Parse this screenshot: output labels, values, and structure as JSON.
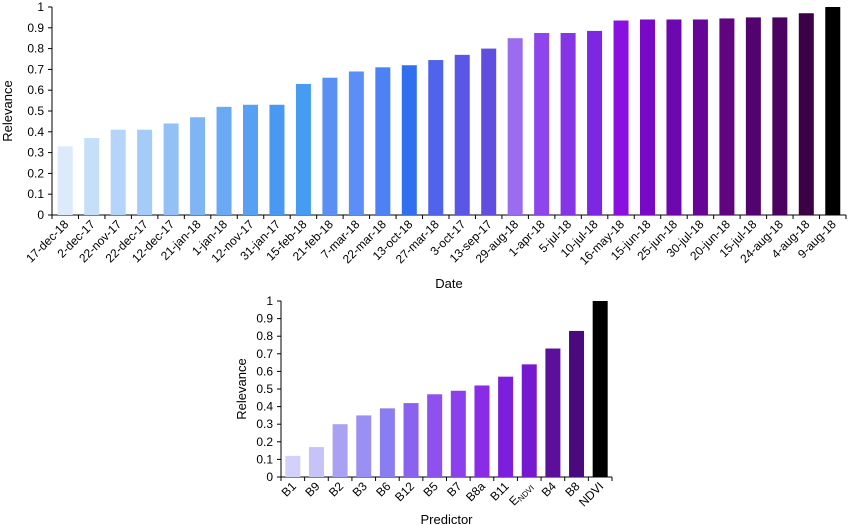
{
  "chart_data": [
    {
      "type": "bar",
      "xlabel": "Date",
      "ylabel": "Relevance",
      "ylim": [
        0,
        1
      ],
      "yticks": [
        "0",
        "0.1",
        "0.2",
        "0.3",
        "0.4",
        "0.5",
        "0.6",
        "0.7",
        "0.8",
        "0.9",
        "1"
      ],
      "grid": false,
      "categories": [
        "17-dec-18",
        "2-dec-17",
        "22-nov-17",
        "22-dec-17",
        "12-dec-17",
        "21-jan-18",
        "1-jan-18",
        "12-nov-17",
        "31-jan-17",
        "15-feb-18",
        "21-feb-18",
        "7-mar-18",
        "22-mar-18",
        "13-oct-18",
        "27-mar-18",
        "3-oct-17",
        "13-sep-17",
        "29-aug-18",
        "1-apr-18",
        "5-jul-18",
        "10-jul-18",
        "16-may-18",
        "15-jun-18",
        "25-jun-18",
        "30-jul-18",
        "20-jun-18",
        "15-jul-18",
        "24-aug-18",
        "4-aug-18",
        "9-aug-18"
      ],
      "values": [
        0.33,
        0.37,
        0.41,
        0.41,
        0.44,
        0.47,
        0.52,
        0.53,
        0.53,
        0.63,
        0.66,
        0.69,
        0.71,
        0.72,
        0.745,
        0.77,
        0.8,
        0.85,
        0.875,
        0.875,
        0.885,
        0.935,
        0.94,
        0.94,
        0.94,
        0.945,
        0.95,
        0.95,
        0.97,
        1.0
      ],
      "colors": [
        "#dceafb",
        "#c5dffa",
        "#b4d5f9",
        "#a5cbf8",
        "#93c1f6",
        "#7fb5f5",
        "#6aaaf4",
        "#58a0f3",
        "#4b98f2",
        "#469bf2",
        "#5a8ff3",
        "#5c8ef7",
        "#4d82f6",
        "#2f6ff0",
        "#4f63ec",
        "#5a56e6",
        "#604de2",
        "#9b6cf0",
        "#8f45ec",
        "#8534e6",
        "#7d26e3",
        "#8a10df",
        "#7909c6",
        "#6d07b0",
        "#670597",
        "#600480",
        "#520370",
        "#4b0260",
        "#3c0145",
        "#000000"
      ]
    },
    {
      "type": "bar",
      "xlabel": "Predictor",
      "ylabel": "Relevance",
      "ylim": [
        0,
        1
      ],
      "yticks": [
        "0",
        "0.1",
        "0.2",
        "0.3",
        "0.4",
        "0.5",
        "0.6",
        "0.7",
        "0.8",
        "0.9",
        "1"
      ],
      "grid": false,
      "categories": [
        "B1",
        "B9",
        "B2",
        "B3",
        "B6",
        "B12",
        "B5",
        "B7",
        "B8a",
        "B11",
        "ENDVI",
        "B4",
        "B8",
        "NDVI"
      ],
      "category_labels": [
        {
          "main": "B1"
        },
        {
          "main": "B9"
        },
        {
          "main": "B2"
        },
        {
          "main": "B3"
        },
        {
          "main": "B6"
        },
        {
          "main": "B12"
        },
        {
          "main": "B5"
        },
        {
          "main": "B7"
        },
        {
          "main": "B8a"
        },
        {
          "main": "B11"
        },
        {
          "main": "E",
          "sub": "NDVI"
        },
        {
          "main": "B4"
        },
        {
          "main": "B8"
        },
        {
          "main": "NDVI"
        }
      ],
      "values": [
        0.12,
        0.17,
        0.3,
        0.35,
        0.39,
        0.42,
        0.47,
        0.49,
        0.52,
        0.57,
        0.64,
        0.73,
        0.83,
        1.0
      ],
      "colors": [
        "#d3d1fb",
        "#c5c3f8",
        "#a9a2f3",
        "#9a8ff2",
        "#8a7cf1",
        "#8b62ef",
        "#8e50ee",
        "#8c3fec",
        "#8a2be7",
        "#7c1edb",
        "#7618cf",
        "#5c0f9b",
        "#4a0a7e",
        "#000000"
      ]
    }
  ]
}
